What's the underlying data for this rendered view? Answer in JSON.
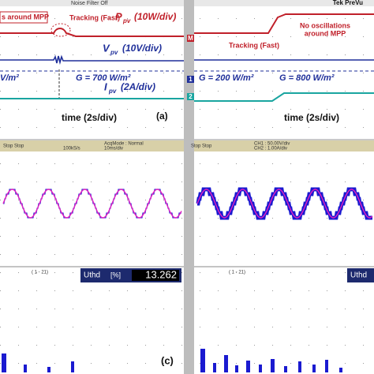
{
  "top_left": {
    "header": "Noise Filter Off",
    "note_mpp": "s around MPP",
    "tracking": "Tracking (Fast)",
    "p_sym": "P",
    "p_sub": "pv",
    "p_scale": "(10W/div)",
    "v_sym": "V",
    "v_sub": "pv",
    "v_scale": "(10V/div)",
    "irr_left": "V/m²",
    "irradiance": "G = 700 W/m²",
    "i_sym": "I",
    "i_sub": "pv",
    "i_scale": "(2A/div)",
    "time": "time (2s/div)",
    "panel": "(a)"
  },
  "top_right": {
    "header": "Tek PreVu",
    "note": [
      "No oscillations",
      "around MPP"
    ],
    "tracking": "Tracking (Fast)",
    "irr_before": "G = 200 W/m²",
    "irr_after": "G = 800 W/m²",
    "time": "time (2s/div)",
    "markers": [
      "M",
      "1",
      "2"
    ]
  },
  "bottom_left": {
    "status": "Stop Stop",
    "acq_mode": "AcqMode : Normal",
    "rate": "100kS/s",
    "timebase": "10ms/div",
    "range": "( 1 - 21)",
    "thd_label": "Uthd",
    "thd_unit": "[%]",
    "thd_value": "13.262",
    "panel": "(c)"
  },
  "bottom_right": {
    "status": "Stop Stop",
    "ch1": "CH1 : 50.00V/div",
    "ch2": "CH2 : 1.00A/div",
    "range": "( 1 - 21)",
    "thd_label": "Uthd"
  }
}
